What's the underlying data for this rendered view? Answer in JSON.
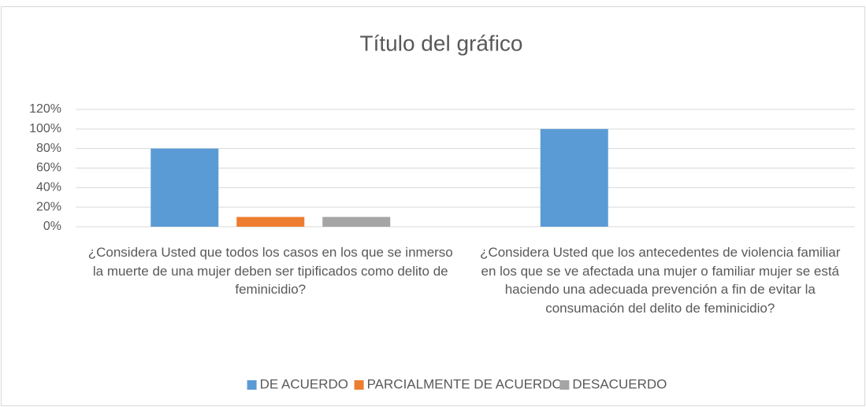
{
  "chart_data": {
    "type": "bar",
    "title": "Título del gráfico",
    "categories": [
      "¿Considera Usted que todos los casos en los que se inmerso la muerte de una mujer deben ser tipificados como delito de feminicidio?",
      "¿Considera Usted que los antecedentes de violencia familiar en los que se ve afectada una mujer o familiar mujer se está haciendo una adecuada prevención a fin de evitar la consumación del delito de feminicidio?"
    ],
    "series": [
      {
        "name": "DE ACUERDO",
        "color": "#5b9bd5",
        "values": [
          80,
          100
        ]
      },
      {
        "name": "PARCIALMENTE DE ACUERDO",
        "color": "#ed7d31",
        "values": [
          10,
          0
        ]
      },
      {
        "name": "DESACUERDO",
        "color": "#a5a5a5",
        "values": [
          10,
          0
        ]
      }
    ],
    "ylim": [
      0,
      120
    ],
    "yticks": [
      {
        "value": 0,
        "label": "0%"
      },
      {
        "value": 20,
        "label": "20%"
      },
      {
        "value": 40,
        "label": "40%"
      },
      {
        "value": 60,
        "label": "60%"
      },
      {
        "value": 80,
        "label": "80%"
      },
      {
        "value": 100,
        "label": "100%"
      },
      {
        "value": 120,
        "label": "120%"
      }
    ],
    "grid": true,
    "legend": "bottom"
  }
}
